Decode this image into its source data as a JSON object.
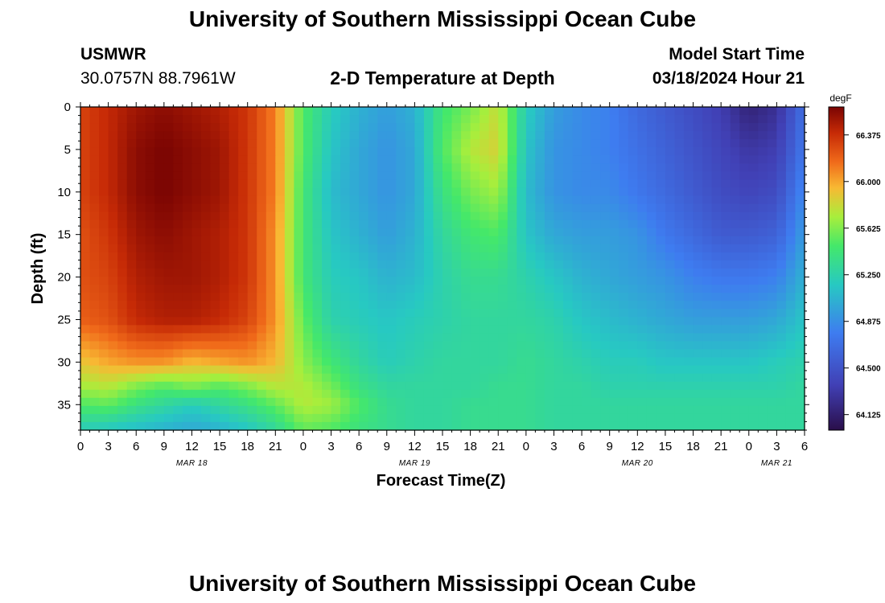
{
  "page": {
    "title": "University of Southern Mississippi Ocean Cube",
    "footer_title": "University of Southern Mississippi Ocean Cube",
    "station": "USMWR",
    "coords": "30.0757N  88.7961W",
    "subtitle": "2-D Temperature at Depth",
    "model_label": "Model Start Time",
    "model_time": "03/18/2024 Hour 21"
  },
  "chart_data": {
    "type": "heatmap",
    "title": "2-D Temperature at Depth",
    "xlabel": "Forecast Time(Z)",
    "ylabel": "Depth (ft)",
    "colorbar_label": "degF",
    "x_range_hours": [
      0,
      78
    ],
    "y_range_ft": [
      0,
      38
    ],
    "x_ticks": [
      "0",
      "3",
      "6",
      "9",
      "12",
      "15",
      "18",
      "21",
      "0",
      "3",
      "6",
      "9",
      "12",
      "15",
      "18",
      "21",
      "0",
      "3",
      "6",
      "9",
      "12",
      "15",
      "18",
      "21",
      "0",
      "3",
      "6"
    ],
    "y_ticks": [
      0,
      5,
      10,
      15,
      20,
      25,
      30,
      35
    ],
    "date_labels": [
      {
        "label": "MAR 18",
        "hour": 12
      },
      {
        "label": "MAR 19",
        "hour": 36
      },
      {
        "label": "MAR 20",
        "hour": 60
      },
      {
        "label": "MAR 21",
        "hour": 75
      }
    ],
    "colorbar_ticks": [
      "66.375",
      "66.000",
      "65.625",
      "65.250",
      "64.875",
      "64.500",
      "64.125"
    ],
    "colorbar_range": [
      64.0,
      66.6
    ],
    "grid": false,
    "colors": {
      "min": "#2a0e4a",
      "low": "#3e5be0",
      "mid": "#3ee07a",
      "high": "#f08a24",
      "max": "#7a0403"
    },
    "depths_ft": [
      0,
      5,
      10,
      15,
      20,
      25,
      30,
      33,
      35,
      38
    ],
    "times_h": [
      0,
      3,
      6,
      9,
      12,
      15,
      18,
      21,
      24,
      27,
      30,
      33,
      36,
      39,
      42,
      45,
      48,
      51,
      54,
      57,
      60,
      63,
      66,
      69,
      72,
      75,
      78
    ],
    "temps_degF": [
      [
        66.3,
        66.4,
        66.5,
        66.55,
        66.5,
        66.45,
        66.35,
        66.1,
        65.5,
        65.2,
        65.05,
        64.95,
        65.05,
        65.45,
        65.6,
        65.8,
        65.2,
        64.95,
        64.85,
        64.8,
        64.65,
        64.55,
        64.45,
        64.35,
        64.15,
        64.25,
        64.7
      ],
      [
        66.3,
        66.4,
        66.55,
        66.6,
        66.55,
        66.5,
        66.35,
        66.1,
        65.5,
        65.15,
        65.0,
        64.9,
        65.0,
        65.5,
        65.75,
        65.85,
        65.15,
        64.9,
        64.85,
        64.8,
        64.7,
        64.6,
        64.5,
        64.4,
        64.3,
        64.35,
        64.75
      ],
      [
        66.3,
        66.4,
        66.55,
        66.6,
        66.55,
        66.5,
        66.35,
        66.1,
        65.45,
        65.1,
        65.0,
        64.9,
        65.0,
        65.4,
        65.6,
        65.7,
        65.1,
        64.9,
        64.85,
        64.85,
        64.75,
        64.65,
        64.55,
        64.45,
        64.4,
        64.45,
        64.85
      ],
      [
        66.25,
        66.35,
        66.5,
        66.55,
        66.5,
        66.45,
        66.35,
        66.05,
        65.45,
        65.15,
        65.05,
        64.95,
        65.05,
        65.3,
        65.45,
        65.5,
        65.15,
        65.0,
        64.95,
        64.95,
        64.9,
        64.75,
        64.65,
        64.55,
        64.55,
        64.6,
        64.95
      ],
      [
        66.25,
        66.3,
        66.45,
        66.5,
        66.5,
        66.45,
        66.35,
        66.05,
        65.45,
        65.2,
        65.15,
        65.05,
        65.1,
        65.25,
        65.35,
        65.35,
        65.25,
        65.15,
        65.05,
        65.0,
        64.95,
        64.9,
        64.8,
        64.75,
        64.75,
        64.8,
        65.05
      ],
      [
        66.2,
        66.25,
        66.4,
        66.45,
        66.45,
        66.4,
        66.3,
        66.05,
        65.55,
        65.25,
        65.2,
        65.15,
        65.2,
        65.25,
        65.3,
        65.3,
        65.3,
        65.25,
        65.15,
        65.1,
        65.05,
        65.0,
        64.95,
        64.95,
        64.95,
        65.0,
        65.15
      ],
      [
        65.9,
        66.0,
        66.05,
        66.05,
        65.95,
        66.0,
        66.05,
        65.95,
        65.65,
        65.45,
        65.3,
        65.2,
        65.25,
        65.3,
        65.3,
        65.3,
        65.35,
        65.3,
        65.25,
        65.2,
        65.2,
        65.15,
        65.15,
        65.15,
        65.15,
        65.2,
        65.25
      ],
      [
        65.7,
        65.75,
        65.6,
        65.5,
        65.6,
        65.5,
        65.6,
        65.75,
        65.75,
        65.6,
        65.4,
        65.3,
        65.3,
        65.3,
        65.3,
        65.35,
        65.35,
        65.3,
        65.3,
        65.25,
        65.25,
        65.25,
        65.25,
        65.25,
        65.25,
        65.25,
        65.3
      ],
      [
        65.5,
        65.55,
        65.4,
        65.3,
        65.2,
        65.3,
        65.4,
        65.55,
        65.75,
        65.7,
        65.5,
        65.35,
        65.3,
        65.3,
        65.35,
        65.35,
        65.35,
        65.3,
        65.3,
        65.3,
        65.3,
        65.3,
        65.3,
        65.3,
        65.3,
        65.3,
        65.3
      ],
      [
        65.2,
        65.15,
        65.1,
        65.05,
        65.0,
        65.05,
        65.15,
        65.3,
        65.55,
        65.5,
        65.4,
        65.35,
        65.3,
        65.3,
        65.35,
        65.35,
        65.35,
        65.3,
        65.3,
        65.3,
        65.3,
        65.3,
        65.3,
        65.3,
        65.3,
        65.3,
        65.3
      ]
    ]
  }
}
